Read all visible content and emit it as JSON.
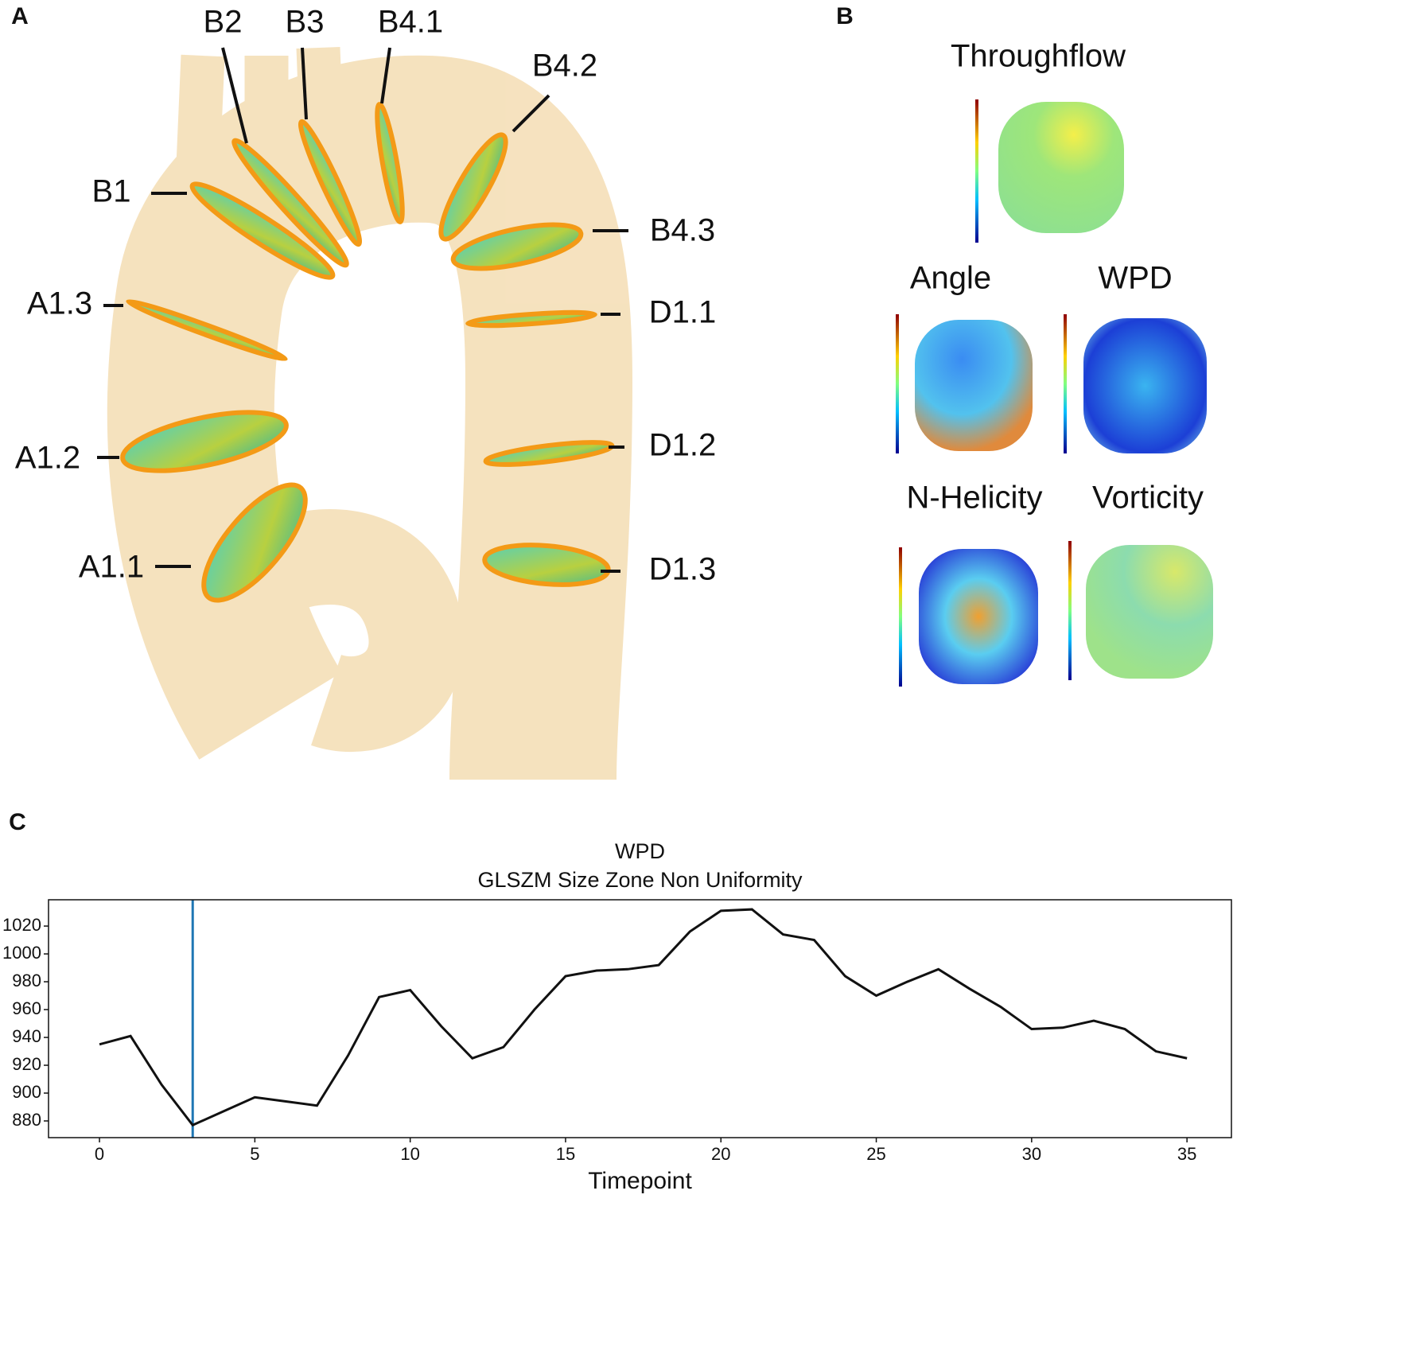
{
  "figure": {
    "panels": [
      "A",
      "B",
      "C"
    ],
    "aorta_labels": [
      "B2",
      "B3",
      "B4.1",
      "B4.2",
      "B1",
      "B4.3",
      "A1.3",
      "D1.1",
      "A1.2",
      "D1.2",
      "A1.1",
      "D1.3"
    ],
    "map_titles": [
      "Throughflow",
      "Angle",
      "WPD",
      "N-Helicity",
      "Vorticity"
    ]
  },
  "chart_data": {
    "type": "line",
    "title": "WPD",
    "subtitle": "GLSZM Size Zone Non Uniformity",
    "x_label": "Timepoint",
    "x": [
      0,
      1,
      2,
      3,
      4,
      5,
      6,
      7,
      8,
      9,
      10,
      11,
      12,
      13,
      14,
      15,
      16,
      17,
      18,
      19,
      20,
      21,
      22,
      23,
      24,
      25,
      26,
      27,
      28,
      29,
      30,
      31,
      32,
      33,
      34,
      35
    ],
    "series": [
      {
        "name": "WPD",
        "color": "#111111",
        "values": [
          935,
          941,
          906,
          877,
          887,
          897,
          894,
          891,
          927,
          969,
          974,
          948,
          925,
          933,
          960,
          984,
          988,
          989,
          992,
          1016,
          1031,
          1032,
          1014,
          1010,
          984,
          970,
          980,
          989,
          975,
          962,
          946,
          947,
          952,
          946,
          930,
          925
        ]
      }
    ],
    "vline": {
      "x": 3,
      "color": "#1f77b4"
    },
    "xlim": [
      -1.64,
      36.43
    ],
    "ylim": [
      868,
      1038.9
    ],
    "xticks": [
      0,
      5,
      10,
      15,
      20,
      25,
      30,
      35
    ],
    "yticks": [
      880,
      900,
      920,
      940,
      960,
      980,
      1000,
      1020
    ]
  }
}
